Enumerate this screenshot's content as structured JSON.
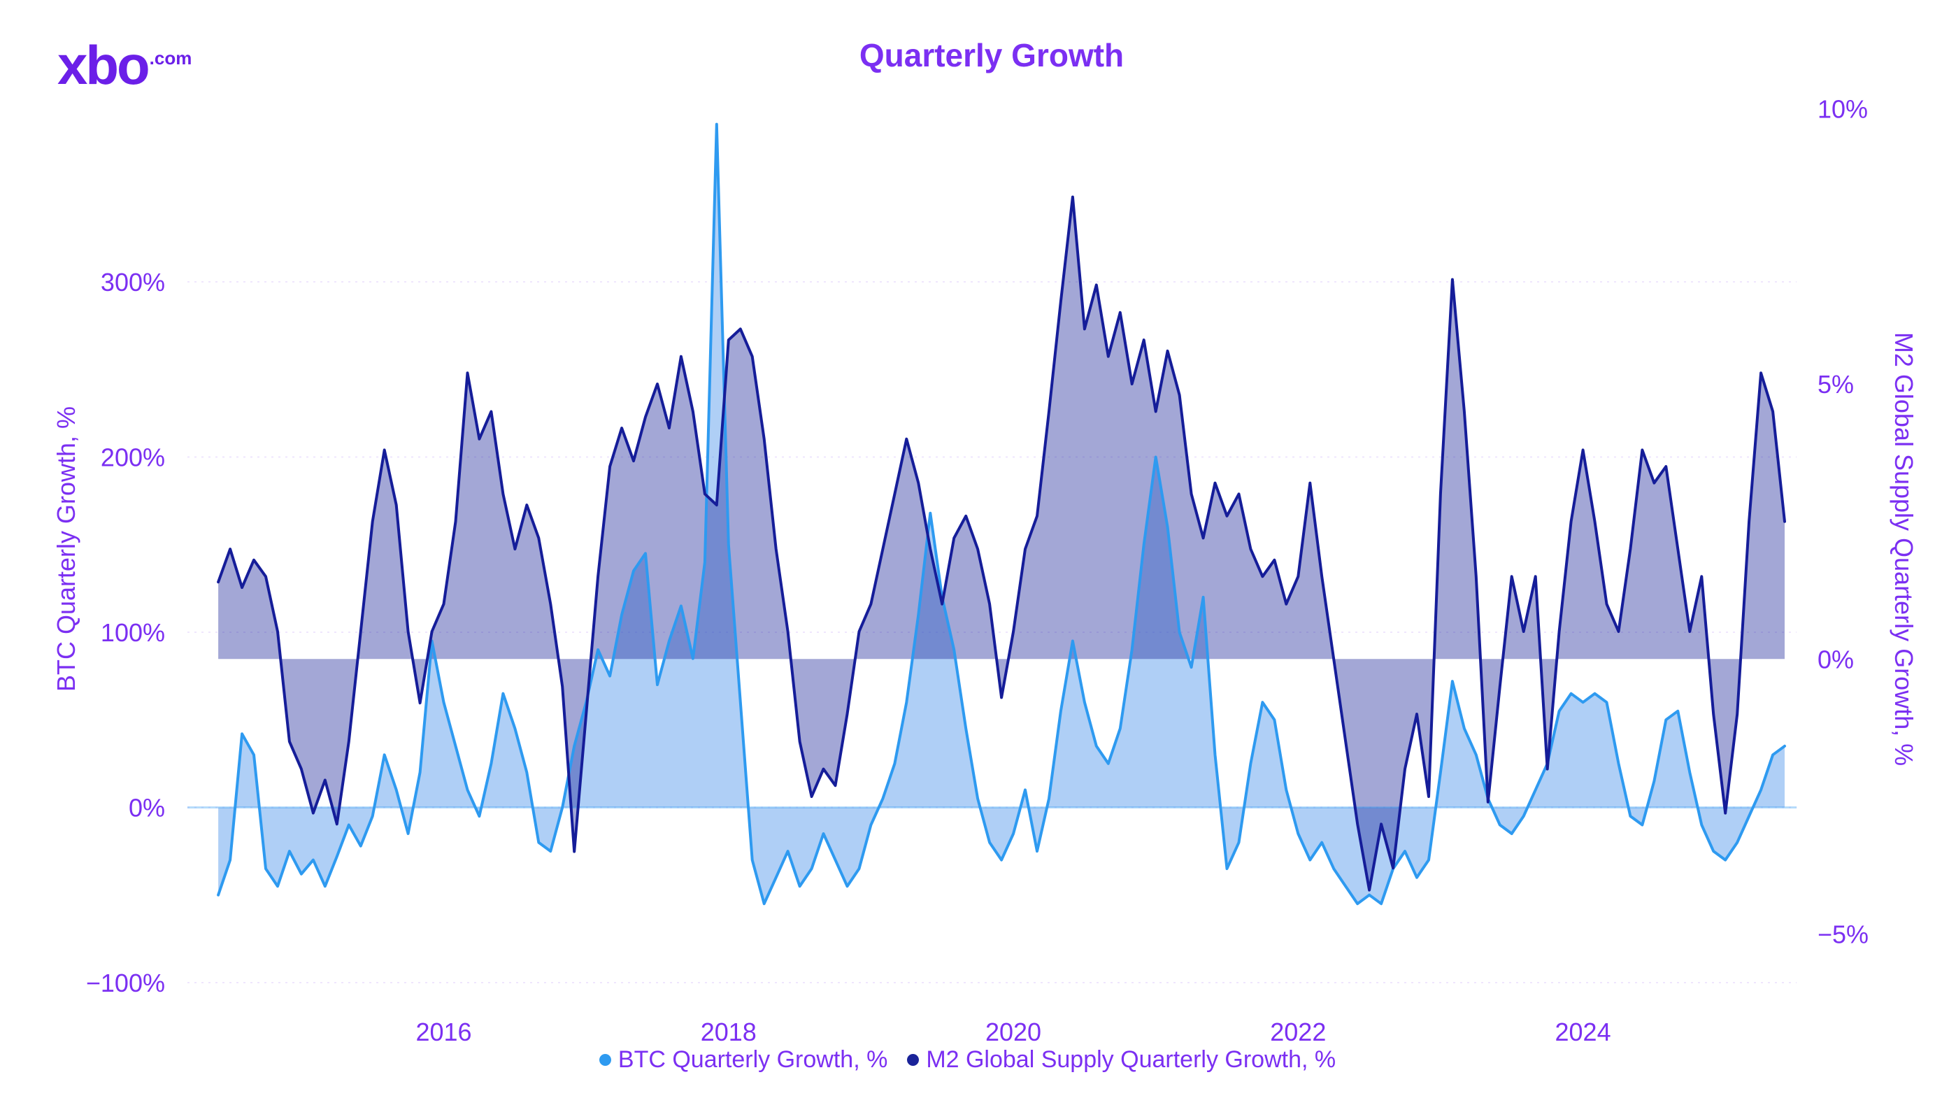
{
  "logo": {
    "text": "xbo",
    "suffix": ".com"
  },
  "title": "Quarterly Growth",
  "legend": [
    {
      "label": "BTC Quarterly Growth, %",
      "color": "#2e9af0"
    },
    {
      "label": "M2 Global Supply Quarterly Growth, %",
      "color": "#1a2399"
    }
  ],
  "colors": {
    "text": "#7b2ff2",
    "logo": "#6b1fe8",
    "grid": "rgba(123,47,242,0.12)",
    "zero_line_left": "rgba(46,154,240,0.35)",
    "background": "#ffffff"
  },
  "chart_data": {
    "type": "area",
    "title": "Quarterly Growth",
    "x_axis": {
      "min": 2014.2,
      "max": 2025.5,
      "ticks": [
        2016,
        2018,
        2020,
        2022,
        2024
      ],
      "tick_labels": [
        "2016",
        "2018",
        "2020",
        "2022",
        "2024"
      ]
    },
    "left_axis": {
      "label": "BTC Quarterly Growth, %",
      "min": -110,
      "max": 405,
      "ticks": [
        300,
        200,
        100,
        0,
        -100
      ],
      "tick_labels": [
        "300%",
        "200%",
        "100%",
        "0%",
        "−100%"
      ]
    },
    "right_axis": {
      "label": "M2 Global Supply Quarterly Growth, %",
      "min": -6.2,
      "max": 10.2,
      "ticks": [
        10,
        5,
        0,
        -5
      ],
      "tick_labels": [
        "10%",
        "5%",
        "0%",
        "−5%"
      ]
    },
    "x_start": 2014.4167,
    "x_step": 0.0833333,
    "grid": true,
    "legend_position": "bottom",
    "series": [
      {
        "name": "BTC Quarterly Growth, %",
        "axis": "left",
        "color": "#2e9af0",
        "fill": "rgba(77,148,235,0.45)",
        "values": [
          -50,
          -30,
          42,
          30,
          -35,
          -45,
          -25,
          -38,
          -30,
          -45,
          -28,
          -10,
          -22,
          -5,
          30,
          10,
          -15,
          20,
          95,
          60,
          35,
          10,
          -5,
          25,
          65,
          45,
          20,
          -20,
          -25,
          0,
          35,
          60,
          90,
          75,
          110,
          135,
          145,
          70,
          95,
          115,
          85,
          140,
          390,
          150,
          60,
          -30,
          -55,
          -40,
          -25,
          -45,
          -35,
          -15,
          -30,
          -45,
          -35,
          -10,
          5,
          25,
          60,
          110,
          168,
          120,
          90,
          45,
          5,
          -20,
          -30,
          -15,
          10,
          -25,
          5,
          55,
          95,
          60,
          35,
          25,
          45,
          90,
          150,
          200,
          160,
          100,
          80,
          120,
          30,
          -35,
          -20,
          25,
          60,
          50,
          10,
          -15,
          -30,
          -20,
          -35,
          -45,
          -55,
          -50,
          -55,
          -35,
          -25,
          -40,
          -30,
          20,
          72,
          45,
          30,
          5,
          -10,
          -15,
          -5,
          10,
          25,
          55,
          65,
          60,
          65,
          60,
          25,
          -5,
          -10,
          15,
          50,
          55,
          20,
          -10,
          -25,
          -30,
          -20,
          -5,
          10,
          30,
          35
        ]
      },
      {
        "name": "M2 Global Supply Quarterly Growth, %",
        "axis": "right",
        "color": "#151d99",
        "fill": "rgba(26,35,153,0.40)",
        "values": [
          1.4,
          2.0,
          1.3,
          1.8,
          1.5,
          0.5,
          -1.5,
          -2.0,
          -2.8,
          -2.2,
          -3.0,
          -1.5,
          0.5,
          2.5,
          3.8,
          2.8,
          0.5,
          -0.8,
          0.5,
          1.0,
          2.5,
          5.2,
          4.0,
          4.5,
          3.0,
          2.0,
          2.8,
          2.2,
          1.0,
          -0.5,
          -3.5,
          -1.0,
          1.5,
          3.5,
          4.2,
          3.6,
          4.4,
          5.0,
          4.2,
          5.5,
          4.5,
          3.0,
          2.8,
          5.8,
          6.0,
          5.5,
          4.0,
          2.0,
          0.5,
          -1.5,
          -2.5,
          -2.0,
          -2.3,
          -1.0,
          0.5,
          1.0,
          2.0,
          3.0,
          4.0,
          3.2,
          2.0,
          1.0,
          2.2,
          2.6,
          2.0,
          1.0,
          -0.7,
          0.5,
          2.0,
          2.6,
          4.5,
          6.5,
          8.4,
          6.0,
          6.8,
          5.5,
          6.3,
          5.0,
          5.8,
          4.5,
          5.6,
          4.8,
          3.0,
          2.2,
          3.2,
          2.6,
          3.0,
          2.0,
          1.5,
          1.8,
          1.0,
          1.5,
          3.2,
          1.5,
          0.0,
          -1.5,
          -3.0,
          -4.2,
          -3.0,
          -3.8,
          -2.0,
          -1.0,
          -2.5,
          3.0,
          6.9,
          4.5,
          1.5,
          -2.6,
          -0.5,
          1.5,
          0.5,
          1.5,
          -2.0,
          0.5,
          2.5,
          3.8,
          2.5,
          1.0,
          0.5,
          2.0,
          3.8,
          3.2,
          3.5,
          2.0,
          0.5,
          1.5,
          -1.0,
          -2.8,
          -1.0,
          2.5,
          5.2,
          4.5,
          2.5
        ]
      }
    ]
  }
}
